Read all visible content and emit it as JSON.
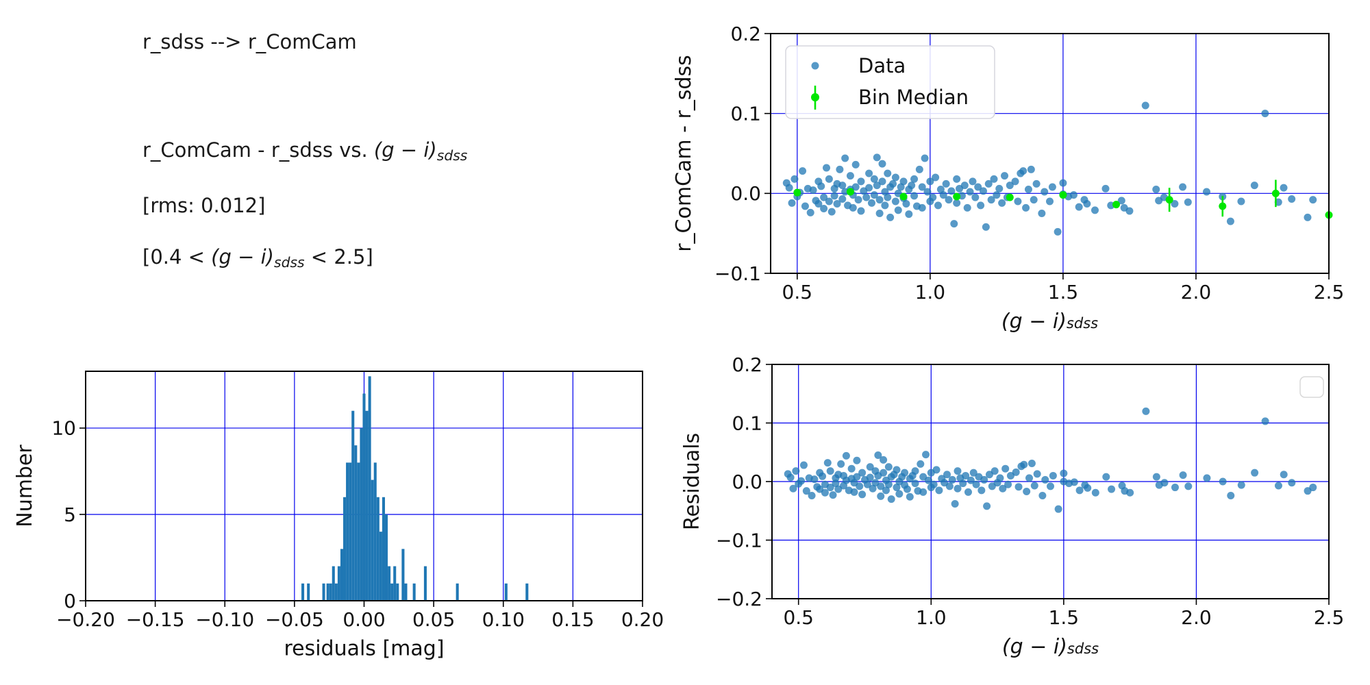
{
  "colors": {
    "scatter_point": "#1f77b4",
    "scatter_opacity": 0.75,
    "bin_median_green": "#00e600",
    "grid_blue": "#0000ee",
    "hist_fill": "#1f77b4",
    "spine_black": "#000000",
    "legend_border": "#d5d5dd"
  },
  "annotations": {
    "lines": [
      {
        "name": "mapping-title",
        "segments": [
          {
            "t": "r_sdss --> r_ComCam",
            "s": "n"
          }
        ]
      },
      {
        "name": "comparison-title",
        "segments": [
          {
            "t": "r_ComCam - r_sdss vs. ",
            "s": "n"
          },
          {
            "t": "(g − i)",
            "s": "i"
          },
          {
            "t": "sdss",
            "s": "sub"
          }
        ]
      },
      {
        "name": "rms-note",
        "segments": [
          {
            "t": "[rms: 0.012]",
            "s": "n"
          }
        ]
      },
      {
        "name": "color-range-note",
        "segments": [
          {
            "t": "[0.4 < ",
            "s": "n"
          },
          {
            "t": "(g − i)",
            "s": "i"
          },
          {
            "t": "sdss",
            "s": "sub"
          },
          {
            "t": " < 2.5]",
            "s": "n"
          }
        ]
      }
    ]
  },
  "chart_data": [
    {
      "id": "top-right-scatter",
      "type": "scatter",
      "ylabel": "r_ComCam - r_sdss",
      "xlabel_segments": [
        {
          "t": "(g − i)",
          "s": "i"
        },
        {
          "t": "sdss",
          "s": "sub"
        }
      ],
      "xlim": [
        0.4,
        2.5
      ],
      "ylim": [
        -0.1,
        0.2
      ],
      "xticks": [
        0.5,
        1.0,
        1.5,
        2.0,
        2.5
      ],
      "xtick_labels": [
        "0.5",
        "1.0",
        "1.5",
        "2.0",
        "2.5"
      ],
      "yticks": [
        -0.1,
        0.0,
        0.1,
        0.2
      ],
      "ytick_labels": [
        "−0.1",
        "0.0",
        "0.1",
        "0.2"
      ],
      "grid": true,
      "legend": {
        "entries": [
          {
            "label": "Data",
            "marker": "dot"
          },
          {
            "label": "Bin Median",
            "marker": "dot-errorbar"
          }
        ]
      },
      "series_names": [
        "Data",
        "Bin Median"
      ],
      "points_y_index": 1,
      "bin_medians": {
        "x": [
          0.5,
          0.7,
          0.9,
          1.1,
          1.3,
          1.5,
          1.7,
          1.9,
          2.1,
          2.3,
          2.5
        ],
        "y": [
          0.001,
          0.002,
          -0.004,
          -0.004,
          -0.005,
          -0.002,
          -0.014,
          -0.008,
          -0.016,
          0.0,
          -0.027
        ],
        "yerr": [
          0.004,
          0.003,
          0.003,
          0.003,
          0.003,
          0.004,
          0.004,
          0.015,
          0.013,
          0.017,
          0.004
        ]
      }
    },
    {
      "id": "histogram",
      "type": "bar",
      "xlabel": "residuals [mag]",
      "ylabel": "Number",
      "xlim": [
        -0.2,
        0.2
      ],
      "ylim": [
        0,
        13.29
      ],
      "xticks": [
        -0.2,
        -0.15,
        -0.1,
        -0.05,
        0.0,
        0.05,
        0.1,
        0.15,
        0.2
      ],
      "xtick_labels": [
        "−0.20",
        "−0.15",
        "−0.10",
        "−0.05",
        "0.00",
        "0.05",
        "0.10",
        "0.15",
        "0.20"
      ],
      "yticks": [
        0,
        5,
        10
      ],
      "ytick_labels": [
        "0",
        "5",
        "10"
      ],
      "grid": true,
      "bin_width": 0.002,
      "bins": [
        [
          -0.044,
          1
        ],
        [
          -0.04,
          1
        ],
        [
          -0.029,
          1
        ],
        [
          -0.026,
          1
        ],
        [
          -0.024,
          1
        ],
        [
          -0.022,
          2
        ],
        [
          -0.02,
          1
        ],
        [
          -0.018,
          2
        ],
        [
          -0.016,
          3
        ],
        [
          -0.014,
          6
        ],
        [
          -0.012,
          8
        ],
        [
          -0.01,
          8
        ],
        [
          -0.008,
          11
        ],
        [
          -0.006,
          9
        ],
        [
          -0.004,
          8
        ],
        [
          -0.002,
          10
        ],
        [
          0.0,
          12
        ],
        [
          0.002,
          11
        ],
        [
          0.004,
          13
        ],
        [
          0.006,
          7
        ],
        [
          0.008,
          8
        ],
        [
          0.01,
          6
        ],
        [
          0.012,
          4
        ],
        [
          0.014,
          6
        ],
        [
          0.016,
          5
        ],
        [
          0.018,
          2
        ],
        [
          0.02,
          1
        ],
        [
          0.022,
          2
        ],
        [
          0.024,
          1
        ],
        [
          0.028,
          3
        ],
        [
          0.03,
          1
        ],
        [
          0.036,
          1
        ],
        [
          0.044,
          2
        ],
        [
          0.067,
          1
        ],
        [
          0.102,
          1
        ],
        [
          0.117,
          1
        ]
      ]
    },
    {
      "id": "bottom-right-scatter",
      "type": "scatter",
      "ylabel": "Residuals",
      "xlabel_segments": [
        {
          "t": "(g − i)",
          "s": "i"
        },
        {
          "t": "sdss",
          "s": "sub"
        }
      ],
      "xlim": [
        0.4,
        2.5
      ],
      "ylim": [
        -0.2,
        0.2
      ],
      "xticks": [
        0.5,
        1.0,
        1.5,
        2.0,
        2.5
      ],
      "xtick_labels": [
        "0.5",
        "1.0",
        "1.5",
        "2.0",
        "2.5"
      ],
      "yticks": [
        -0.2,
        -0.1,
        0.0,
        0.1,
        0.2
      ],
      "ytick_labels": [
        "−0.2",
        "−0.1",
        "0.0",
        "0.1",
        "0.2"
      ],
      "grid": true,
      "legend_empty": true,
      "points_y_index": 2
    }
  ],
  "scatter_points": [
    [
      0.46,
      0.013,
      0.013
    ],
    [
      0.47,
      0.007,
      0.007
    ],
    [
      0.48,
      -0.012,
      -0.012
    ],
    [
      0.49,
      0.018,
      0.018
    ],
    [
      0.5,
      -0.004,
      -0.004
    ],
    [
      0.51,
      0.001,
      0.001
    ],
    [
      0.52,
      0.028,
      0.028
    ],
    [
      0.53,
      -0.016,
      -0.016
    ],
    [
      0.54,
      0.006,
      0.006
    ],
    [
      0.55,
      -0.024,
      -0.024
    ],
    [
      0.56,
      0.004,
      0.004
    ],
    [
      0.57,
      -0.009,
      -0.009
    ],
    [
      0.58,
      0.015,
      0.015
    ],
    [
      0.58,
      -0.013,
      -0.013
    ],
    [
      0.59,
      0.009,
      0.009
    ],
    [
      0.6,
      -0.005,
      -0.005
    ],
    [
      0.6,
      -0.019,
      -0.019
    ],
    [
      0.61,
      0.032,
      0.032
    ],
    [
      0.62,
      -0.01,
      -0.01
    ],
    [
      0.62,
      0.018,
      0.018
    ],
    [
      0.63,
      -0.023,
      -0.023
    ],
    [
      0.64,
      0.006,
      0.006
    ],
    [
      0.64,
      -0.003,
      -0.003
    ],
    [
      0.65,
      -0.013,
      -0.013
    ],
    [
      0.65,
      0.012,
      0.012
    ],
    [
      0.66,
      0.03,
      0.03
    ],
    [
      0.67,
      0.01,
      0.01
    ],
    [
      0.67,
      -0.007,
      -0.007
    ],
    [
      0.68,
      0.044,
      0.044
    ],
    [
      0.68,
      0.002,
      0.002
    ],
    [
      0.69,
      -0.015,
      -0.015
    ],
    [
      0.7,
      0.022,
      0.022
    ],
    [
      0.7,
      0.005,
      0.005
    ],
    [
      0.71,
      -0.002,
      -0.002
    ],
    [
      0.71,
      -0.018,
      -0.018
    ],
    [
      0.72,
      0.036,
      0.036
    ],
    [
      0.72,
      0.008,
      0.008
    ],
    [
      0.73,
      -0.008,
      -0.008
    ],
    [
      0.74,
      0.015,
      0.015
    ],
    [
      0.74,
      -0.022,
      -0.022
    ],
    [
      0.75,
      0.003,
      0.003
    ],
    [
      0.76,
      -0.005,
      -0.005
    ],
    [
      0.77,
      0.025,
      0.025
    ],
    [
      0.77,
      0.007,
      0.007
    ],
    [
      0.78,
      -0.012,
      -0.012
    ],
    [
      0.79,
      0.018,
      0.018
    ],
    [
      0.79,
      -0.002,
      -0.002
    ],
    [
      0.8,
      0.045,
      0.045
    ],
    [
      0.8,
      0.01,
      0.01
    ],
    [
      0.81,
      -0.008,
      -0.008
    ],
    [
      0.81,
      -0.025,
      -0.025
    ],
    [
      0.82,
      0.037,
      0.037
    ],
    [
      0.82,
      0.015,
      0.015
    ],
    [
      0.83,
      0.002,
      0.002
    ],
    [
      0.83,
      -0.015,
      -0.015
    ],
    [
      0.84,
      0.025,
      0.025
    ],
    [
      0.84,
      -0.005,
      -0.005
    ],
    [
      0.85,
      0.008,
      0.008
    ],
    [
      0.85,
      -0.03,
      -0.03
    ],
    [
      0.86,
      0.012,
      0.012
    ],
    [
      0.87,
      -0.01,
      -0.01
    ],
    [
      0.87,
      0.02,
      0.02
    ],
    [
      0.88,
      0.0,
      0.0
    ],
    [
      0.88,
      -0.021,
      -0.021
    ],
    [
      0.89,
      0.008,
      0.008
    ],
    [
      0.9,
      -0.006,
      -0.006
    ],
    [
      0.9,
      0.015,
      0.015
    ],
    [
      0.91,
      -0.013,
      -0.013
    ],
    [
      0.92,
      0.005,
      0.005
    ],
    [
      0.92,
      -0.026,
      -0.026
    ],
    [
      0.93,
      0.01,
      0.01
    ],
    [
      0.94,
      -0.003,
      -0.003
    ],
    [
      0.94,
      0.018,
      0.018
    ],
    [
      0.95,
      -0.016,
      -0.016
    ],
    [
      0.96,
      0.03,
      0.03
    ],
    [
      0.97,
      0.008,
      0.008
    ],
    [
      0.97,
      -0.018,
      -0.018
    ],
    [
      0.98,
      0.044,
      0.046
    ],
    [
      0.99,
      0.002,
      0.002
    ],
    [
      1.0,
      -0.01,
      -0.01
    ],
    [
      1.0,
      0.015,
      0.015
    ],
    [
      1.01,
      -0.005,
      -0.005
    ],
    [
      1.02,
      0.02,
      0.02
    ],
    [
      1.03,
      -0.015,
      -0.015
    ],
    [
      1.04,
      0.005,
      0.005
    ],
    [
      1.05,
      -0.002,
      -0.002
    ],
    [
      1.06,
      0.012,
      0.012
    ],
    [
      1.07,
      -0.008,
      -0.008
    ],
    [
      1.08,
      0.003,
      0.003
    ],
    [
      1.09,
      -0.038,
      -0.038
    ],
    [
      1.1,
      0.018,
      0.018
    ],
    [
      1.1,
      -0.012,
      -0.012
    ],
    [
      1.11,
      0.006,
      0.006
    ],
    [
      1.12,
      -0.003,
      -0.003
    ],
    [
      1.13,
      0.01,
      0.01
    ],
    [
      1.14,
      -0.018,
      -0.018
    ],
    [
      1.15,
      0.002,
      0.002
    ],
    [
      1.16,
      0.015,
      0.015
    ],
    [
      1.17,
      -0.005,
      -0.005
    ],
    [
      1.18,
      0.008,
      0.008
    ],
    [
      1.19,
      -0.015,
      -0.015
    ],
    [
      1.2,
      0.003,
      0.003
    ],
    [
      1.21,
      -0.042,
      -0.042
    ],
    [
      1.22,
      0.012,
      0.012
    ],
    [
      1.23,
      -0.008,
      -0.008
    ],
    [
      1.24,
      0.018,
      0.018
    ],
    [
      1.25,
      -0.002,
      -0.002
    ],
    [
      1.26,
      0.006,
      0.006
    ],
    [
      1.27,
      -0.012,
      -0.012
    ],
    [
      1.28,
      0.022,
      0.022
    ],
    [
      1.29,
      -0.005,
      -0.005
    ],
    [
      1.3,
      0.01,
      0.01
    ],
    [
      1.32,
      0.015,
      0.016
    ],
    [
      1.33,
      -0.01,
      -0.009
    ],
    [
      1.34,
      0.025,
      0.026
    ],
    [
      1.35,
      0.028,
      0.029
    ],
    [
      1.36,
      -0.018,
      -0.017
    ],
    [
      1.37,
      0.005,
      0.006
    ],
    [
      1.38,
      0.03,
      0.031
    ],
    [
      1.39,
      -0.008,
      -0.007
    ],
    [
      1.4,
      0.012,
      0.013
    ],
    [
      1.42,
      -0.025,
      -0.024
    ],
    [
      1.43,
      0.002,
      0.003
    ],
    [
      1.45,
      -0.01,
      -0.008
    ],
    [
      1.46,
      0.008,
      0.01
    ],
    [
      1.48,
      -0.048,
      -0.047
    ],
    [
      1.5,
      0.013,
      0.014
    ],
    [
      1.5,
      -0.001,
      0.0
    ],
    [
      1.52,
      -0.004,
      -0.003
    ],
    [
      1.54,
      -0.002,
      -0.001
    ],
    [
      1.56,
      -0.017,
      -0.015
    ],
    [
      1.58,
      -0.008,
      -0.006
    ],
    [
      1.59,
      -0.013,
      -0.011
    ],
    [
      1.62,
      -0.021,
      -0.019
    ],
    [
      1.66,
      0.006,
      0.008
    ],
    [
      1.68,
      -0.015,
      -0.013
    ],
    [
      1.72,
      -0.009,
      -0.007
    ],
    [
      1.73,
      -0.018,
      -0.016
    ],
    [
      1.75,
      -0.022,
      -0.019
    ],
    [
      1.81,
      0.11,
      0.12
    ],
    [
      1.85,
      0.005,
      0.008
    ],
    [
      1.86,
      -0.009,
      -0.006
    ],
    [
      1.88,
      -0.005,
      -0.002
    ],
    [
      1.92,
      -0.013,
      -0.01
    ],
    [
      1.95,
      0.008,
      0.011
    ],
    [
      1.97,
      -0.011,
      -0.008
    ],
    [
      2.04,
      0.002,
      0.006
    ],
    [
      2.1,
      -0.004,
      0.0
    ],
    [
      2.13,
      -0.035,
      -0.024
    ],
    [
      2.17,
      -0.01,
      -0.006
    ],
    [
      2.22,
      0.01,
      0.015
    ],
    [
      2.26,
      0.1,
      0.103
    ],
    [
      2.31,
      -0.011,
      -0.007
    ],
    [
      2.33,
      0.007,
      0.012
    ],
    [
      2.36,
      -0.007,
      -0.002
    ],
    [
      2.42,
      -0.03,
      -0.016
    ],
    [
      2.44,
      -0.008,
      -0.01
    ]
  ]
}
